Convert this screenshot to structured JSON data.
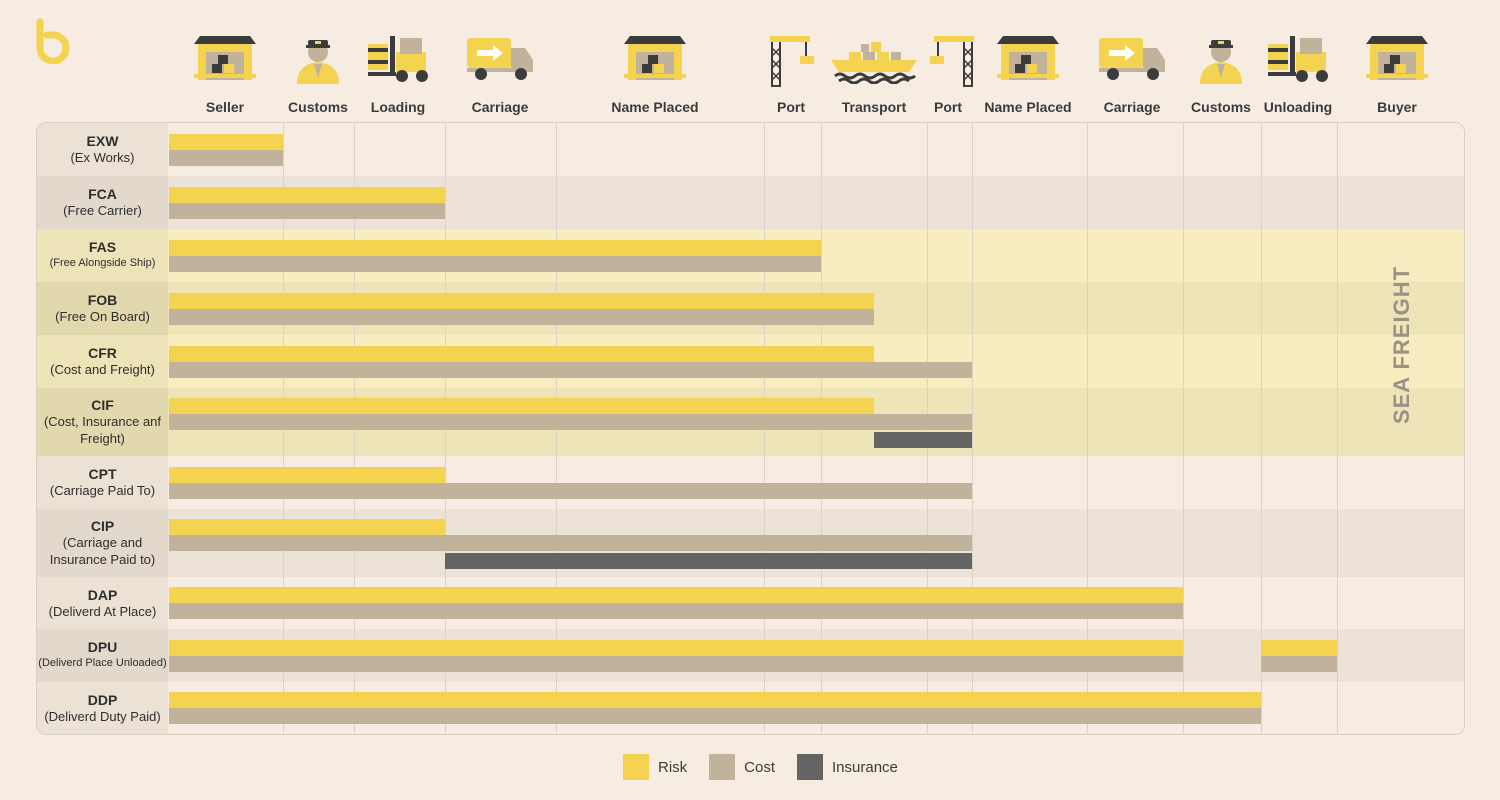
{
  "colors": {
    "risk": "#f4d350",
    "cost": "#c1b39b",
    "insurance": "#646464",
    "background": "#f7ece2",
    "sea_band": "#f7edc1",
    "sea_band_alt": "#ede4b7",
    "alt_row": "#ece2d8"
  },
  "stages": [
    {
      "label": "Seller",
      "icon": "warehouse-icon"
    },
    {
      "label": "Customs",
      "icon": "customs-officer-icon"
    },
    {
      "label": "Loading",
      "icon": "forklift-icon"
    },
    {
      "label": "Carriage",
      "icon": "truck-icon"
    },
    {
      "label": "Name Placed",
      "icon": "warehouse-icon"
    },
    {
      "label": "Port",
      "icon": "crane-icon"
    },
    {
      "label": "Transport",
      "icon": "ship-icon"
    },
    {
      "label": "Port",
      "icon": "crane-icon"
    },
    {
      "label": "Name Placed",
      "icon": "warehouse-icon"
    },
    {
      "label": "Carriage",
      "icon": "truck-icon"
    },
    {
      "label": "Customs",
      "icon": "customs-officer-icon"
    },
    {
      "label": "Unloading",
      "icon": "forklift-icon"
    },
    {
      "label": "Buyer",
      "icon": "warehouse-icon"
    }
  ],
  "chart_data": {
    "type": "bar",
    "orientation": "horizontal",
    "title": "",
    "x_categories": [
      "Seller",
      "Customs",
      "Loading",
      "Carriage",
      "Name Placed",
      "Port",
      "Transport",
      "Port",
      "Name Placed",
      "Carriage",
      "Customs",
      "Unloading",
      "Buyer"
    ],
    "series_names": [
      "Risk",
      "Cost",
      "Insurance"
    ],
    "rows": [
      {
        "code": "EXW",
        "name": "(Ex Works)",
        "sea": false,
        "risk": [
          0,
          1
        ],
        "cost": [
          0,
          1
        ],
        "insurance": null
      },
      {
        "code": "FCA",
        "name": "(Free Carrier)",
        "sea": false,
        "risk": [
          0,
          3
        ],
        "cost": [
          0,
          3
        ],
        "insurance": null
      },
      {
        "code": "FAS",
        "name": "(Free Alongside Ship)",
        "sea": true,
        "risk": [
          0,
          6
        ],
        "cost": [
          0,
          6
        ],
        "insurance": null
      },
      {
        "code": "FOB",
        "name": "(Free On Board)",
        "sea": true,
        "risk": [
          0,
          6.5
        ],
        "cost": [
          0,
          6.5
        ],
        "insurance": null
      },
      {
        "code": "CFR",
        "name": "(Cost and Freight)",
        "sea": true,
        "risk": [
          0,
          6.5
        ],
        "cost": [
          0,
          8
        ],
        "insurance": null
      },
      {
        "code": "CIF",
        "name": "(Cost, Insurance anf Freight)",
        "sea": true,
        "risk": [
          0,
          6.5
        ],
        "cost": [
          0,
          8
        ],
        "insurance": [
          6.5,
          8
        ]
      },
      {
        "code": "CPT",
        "name": "(Carriage Paid To)",
        "sea": false,
        "risk": [
          0,
          3
        ],
        "cost": [
          0,
          8
        ],
        "insurance": null
      },
      {
        "code": "CIP",
        "name": "(Carriage and Insurance Paid to)",
        "sea": false,
        "risk": [
          0,
          3
        ],
        "cost": [
          0,
          8
        ],
        "insurance": [
          3,
          8
        ]
      },
      {
        "code": "DAP",
        "name": "(Deliverd At Place)",
        "sea": false,
        "risk": [
          0,
          10
        ],
        "cost": [
          0,
          10
        ],
        "insurance": null
      },
      {
        "code": "DPU",
        "name": "(Deliverd Place Unloaded)",
        "sea": false,
        "risk": [
          [
            0,
            10
          ],
          [
            11,
            12
          ]
        ],
        "cost": [
          [
            0,
            10
          ],
          [
            11,
            12
          ]
        ],
        "insurance": null
      },
      {
        "code": "DDP",
        "name": "(Deliverd Duty Paid)",
        "sea": false,
        "risk": [
          0,
          11
        ],
        "cost": [
          0,
          11
        ],
        "insurance": null
      }
    ],
    "annotation": "SEA FREIGHT",
    "legend": [
      "Risk",
      "Cost",
      "Insurance"
    ]
  }
}
